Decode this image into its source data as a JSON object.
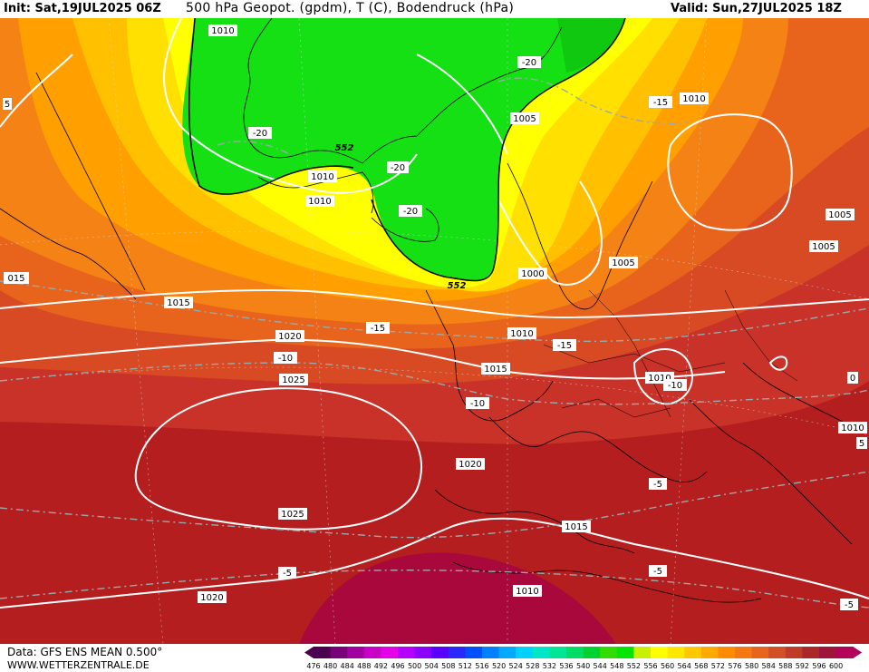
{
  "header": {
    "init": "Init: Sat,19JUL2025 06Z",
    "title": "500 hPa Geopot. (gpdm), T (C), Bodendruck (hPa)",
    "valid": "Valid: Sun,27JUL2025 18Z"
  },
  "footer": {
    "data": "Data: GFS ENS MEAN 0.500°",
    "site": "WWW.WETTERZENTRALE.DE"
  },
  "legend": {
    "values": [
      "476",
      "480",
      "484",
      "488",
      "492",
      "496",
      "500",
      "504",
      "508",
      "512",
      "516",
      "520",
      "524",
      "528",
      "532",
      "536",
      "540",
      "544",
      "548",
      "552",
      "556",
      "560",
      "564",
      "568",
      "572",
      "576",
      "580",
      "584",
      "588",
      "592",
      "596",
      "600"
    ],
    "colors": [
      "#4b0050",
      "#7a007a",
      "#a000a0",
      "#c800c8",
      "#e600e6",
      "#b400ff",
      "#8c00ff",
      "#5a00ff",
      "#2828ff",
      "#0050ff",
      "#0080ff",
      "#00aaff",
      "#00d2ff",
      "#00e6c8",
      "#00e696",
      "#00dc64",
      "#00d232",
      "#32dc00",
      "#00e600",
      "#c8f000",
      "#ffff00",
      "#ffe600",
      "#ffc800",
      "#ffaa00",
      "#ff8c00",
      "#f57814",
      "#e6641e",
      "#d25028",
      "#be3c28",
      "#aa2828",
      "#a0143c",
      "#b4005a"
    ]
  },
  "isobar_labels": [
    "1010",
    "1010",
    "1010",
    "1005",
    "1000",
    "1005",
    "1010",
    "1010",
    "1015",
    "1015",
    "1020",
    "1025",
    "1020",
    "1025",
    "1015",
    "1010",
    "1020",
    "1010",
    "1005",
    "1005",
    "015",
    "1010"
  ],
  "temp_labels": [
    "-20",
    "-20",
    "-20",
    "-20",
    "-15",
    "-15",
    "-15",
    "-10",
    "-10",
    "-10",
    "-5",
    "-5",
    "-5",
    "-5"
  ],
  "geopot_labels": [
    "552",
    "552"
  ],
  "edge_labels": [
    "5",
    "0",
    "5"
  ]
}
